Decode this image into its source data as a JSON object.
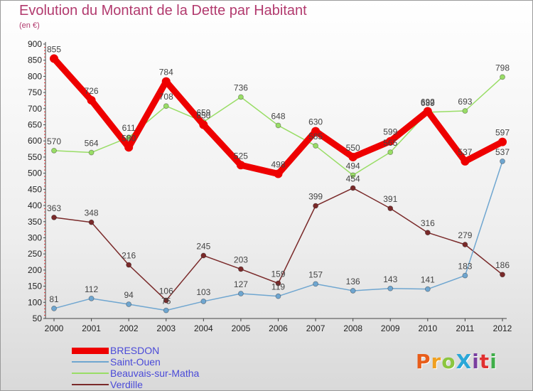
{
  "chart_data": {
    "type": "line",
    "title": "Evolution du Montant de la Dette par Habitant",
    "subtitle": "(en €)",
    "x": [
      2000,
      2001,
      2002,
      2003,
      2004,
      2005,
      2006,
      2007,
      2008,
      2009,
      2010,
      2011,
      2012
    ],
    "ylim": [
      50,
      900
    ],
    "yticks": [
      50,
      100,
      150,
      200,
      250,
      300,
      350,
      400,
      450,
      500,
      550,
      600,
      650,
      700,
      750,
      800,
      850,
      900
    ],
    "grid": false,
    "legend_position": "bottom-left",
    "series": [
      {
        "name": "BRESDON",
        "color": "#ee0000",
        "values": [
          855,
          726,
          580,
          784,
          650,
          525,
          498,
          630,
          550,
          599,
          692,
          537,
          597
        ],
        "labels": [
          "855",
          "726",
          "580",
          "784",
          "650",
          "525",
          "498",
          "630",
          "550",
          "599",
          "692",
          "537",
          "597"
        ]
      },
      {
        "name": "Saint-Ouen",
        "color": "#6fa6d0",
        "values": [
          81,
          112,
          94,
          75,
          103,
          127,
          119,
          157,
          136,
          143,
          141,
          183,
          537
        ],
        "labels": [
          "81",
          "112",
          "94",
          "75",
          "103",
          "127",
          "119",
          "157",
          "136",
          "143",
          "141",
          "183",
          "537"
        ]
      },
      {
        "name": "Beauvais-sur-Matha",
        "color": "#99dd66",
        "values": [
          570,
          564,
          611,
          708,
          659,
          736,
          648,
          585,
          494,
          565,
          689,
          693,
          798
        ],
        "labels": [
          "570",
          "564",
          "611",
          "708",
          "659",
          "736",
          "648",
          "585",
          "494",
          "565",
          "689",
          "693",
          "798"
        ]
      },
      {
        "name": "Verdille",
        "color": "#7a2a2a",
        "values": [
          363,
          348,
          216,
          106,
          245,
          203,
          159,
          399,
          454,
          391,
          316,
          279,
          186
        ],
        "labels": [
          "363",
          "348",
          "216",
          "106",
          "245",
          "203",
          "159",
          "399",
          "454",
          "391",
          "316",
          "279",
          "186"
        ]
      }
    ]
  },
  "logo": {
    "text": "ProXiti",
    "colors": [
      "#e85d1a",
      "#f0a020",
      "#8cc63f",
      "#2aa7d8",
      "#7a3fa0",
      "#e03030",
      "#3fae49"
    ]
  }
}
